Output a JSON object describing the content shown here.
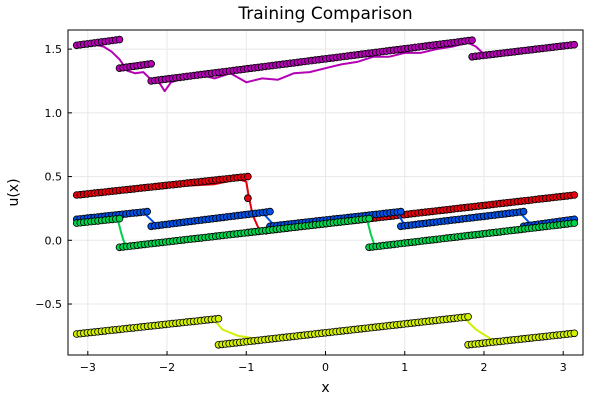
{
  "chart_data": {
    "type": "scatter",
    "title": "Training Comparison",
    "xlabel": "x",
    "ylabel": "u(x)",
    "xlim": [
      -3.25,
      3.25
    ],
    "ylim": [
      -0.9,
      1.65
    ],
    "xticks": [
      -3,
      -2,
      -1,
      0,
      1,
      2,
      3
    ],
    "xtick_labels": [
      "−3",
      "−2",
      "−1",
      "0",
      "1",
      "2",
      "3"
    ],
    "yticks": [
      -0.5,
      0.0,
      0.5,
      1.0,
      1.5
    ],
    "ytick_labels": [
      "−0.5",
      "0.0",
      "0.5",
      "1.0",
      "1.5"
    ],
    "grid": true,
    "legend": "none",
    "series": [
      {
        "color": "#b400b4",
        "segments": [
          {
            "x": [
              -3.14,
              -2.6
            ],
            "y": [
              1.53,
              1.575
            ]
          },
          {
            "x": [
              -2.6,
              -2.2
            ],
            "y": [
              1.35,
              1.385
            ]
          },
          {
            "x": [
              -2.2,
              1.85
            ],
            "y": [
              1.25,
              1.57
            ]
          },
          {
            "x": [
              1.85,
              3.14
            ],
            "y": [
              1.44,
              1.535
            ]
          }
        ],
        "fit": [
          [
            -3.14,
            1.53
          ],
          [
            -2.95,
            1.54
          ],
          [
            -2.8,
            1.52
          ],
          [
            -2.7,
            1.48
          ],
          [
            -2.6,
            1.42
          ],
          [
            -2.5,
            1.33
          ],
          [
            -2.4,
            1.31
          ],
          [
            -2.3,
            1.32
          ],
          [
            -2.2,
            1.26
          ],
          [
            -2.1,
            1.24
          ],
          [
            -2.03,
            1.17
          ],
          [
            -1.95,
            1.24
          ],
          [
            -1.8,
            1.27
          ],
          [
            -1.6,
            1.3
          ],
          [
            -1.4,
            1.27
          ],
          [
            -1.2,
            1.31
          ],
          [
            -1.0,
            1.24
          ],
          [
            -0.8,
            1.27
          ],
          [
            -0.6,
            1.26
          ],
          [
            -0.4,
            1.31
          ],
          [
            -0.2,
            1.32
          ],
          [
            0.0,
            1.35
          ],
          [
            0.2,
            1.38
          ],
          [
            0.4,
            1.4
          ],
          [
            0.6,
            1.44
          ],
          [
            0.8,
            1.44
          ],
          [
            1.0,
            1.47
          ],
          [
            1.2,
            1.47
          ],
          [
            1.4,
            1.5
          ],
          [
            1.6,
            1.52
          ],
          [
            1.8,
            1.55
          ],
          [
            1.9,
            1.52
          ],
          [
            2.0,
            1.46
          ],
          [
            2.2,
            1.45
          ],
          [
            2.4,
            1.48
          ],
          [
            2.6,
            1.51
          ],
          [
            2.8,
            1.52
          ],
          [
            3.0,
            1.53
          ],
          [
            3.14,
            1.53
          ]
        ]
      },
      {
        "color": "#e6000d",
        "segments": [
          {
            "x": [
              -3.14,
              -0.98
            ],
            "y": [
              0.355,
              0.5
            ]
          },
          {
            "x": [
              -0.98,
              -0.98
            ],
            "y": [
              0.33,
              0.33
            ]
          },
          {
            "x": [
              -0.98,
              3.14
            ],
            "y": [
              0.06,
              0.355
            ]
          }
        ],
        "fit": [
          [
            -3.14,
            0.355
          ],
          [
            -2.0,
            0.42
          ],
          [
            -1.4,
            0.44
          ],
          [
            -1.1,
            0.48
          ],
          [
            -1.0,
            0.46
          ],
          [
            -0.97,
            0.35
          ],
          [
            -0.92,
            0.2
          ],
          [
            -0.85,
            0.1
          ],
          [
            -0.75,
            0.05
          ],
          [
            -0.6,
            0.11
          ],
          [
            0.0,
            0.16
          ],
          [
            1.0,
            0.22
          ],
          [
            2.0,
            0.28
          ],
          [
            3.14,
            0.355
          ]
        ]
      },
      {
        "color": "#0050e6",
        "segments": [
          {
            "x": [
              -3.14,
              -2.25
            ],
            "y": [
              0.165,
              0.225
            ]
          },
          {
            "x": [
              -2.2,
              -0.7
            ],
            "y": [
              0.11,
              0.225
            ]
          },
          {
            "x": [
              -0.7,
              0.95
            ],
            "y": [
              0.11,
              0.225
            ]
          },
          {
            "x": [
              0.95,
              2.5
            ],
            "y": [
              0.11,
              0.225
            ]
          },
          {
            "x": [
              2.5,
              3.14
            ],
            "y": [
              0.11,
              0.165
            ]
          }
        ],
        "fit": [
          [
            -3.14,
            0.165
          ],
          [
            -2.3,
            0.22
          ],
          [
            -2.15,
            0.13
          ],
          [
            -0.8,
            0.22
          ],
          [
            -0.65,
            0.12
          ],
          [
            0.9,
            0.22
          ],
          [
            1.0,
            0.12
          ],
          [
            2.45,
            0.22
          ],
          [
            2.6,
            0.12
          ],
          [
            3.14,
            0.165
          ]
        ]
      },
      {
        "color": "#00d24b",
        "segments": [
          {
            "x": [
              -3.14,
              -2.6
            ],
            "y": [
              0.135,
              0.17
            ]
          },
          {
            "x": [
              -2.6,
              0.55
            ],
            "y": [
              -0.055,
              0.17
            ]
          },
          {
            "x": [
              0.55,
              3.14
            ],
            "y": [
              -0.055,
              0.135
            ]
          }
        ],
        "fit": [
          [
            -3.14,
            0.135
          ],
          [
            -2.62,
            0.16
          ],
          [
            -2.58,
            0.06
          ],
          [
            -2.54,
            -0.02
          ],
          [
            -2.45,
            -0.05
          ],
          [
            0.53,
            0.15
          ],
          [
            0.57,
            0.05
          ],
          [
            0.62,
            -0.04
          ],
          [
            0.7,
            -0.05
          ],
          [
            3.14,
            0.135
          ]
        ]
      },
      {
        "color": "#d2f000",
        "segments": [
          {
            "x": [
              -3.14,
              -1.35
            ],
            "y": [
              -0.735,
              -0.615
            ]
          },
          {
            "x": [
              -1.35,
              1.8
            ],
            "y": [
              -0.82,
              -0.6
            ]
          },
          {
            "x": [
              1.8,
              3.14
            ],
            "y": [
              -0.82,
              -0.73
            ]
          }
        ],
        "fit": [
          [
            -3.14,
            -0.735
          ],
          [
            -2.0,
            -0.66
          ],
          [
            -1.4,
            -0.63
          ],
          [
            -1.3,
            -0.7
          ],
          [
            -1.1,
            -0.75
          ],
          [
            -0.8,
            -0.78
          ],
          [
            -0.5,
            -0.77
          ],
          [
            0.0,
            -0.74
          ],
          [
            0.5,
            -0.7
          ],
          [
            1.0,
            -0.67
          ],
          [
            1.5,
            -0.64
          ],
          [
            1.75,
            -0.61
          ],
          [
            1.9,
            -0.7
          ],
          [
            2.1,
            -0.78
          ],
          [
            2.4,
            -0.79
          ],
          [
            2.8,
            -0.76
          ],
          [
            3.14,
            -0.73
          ]
        ]
      }
    ]
  }
}
